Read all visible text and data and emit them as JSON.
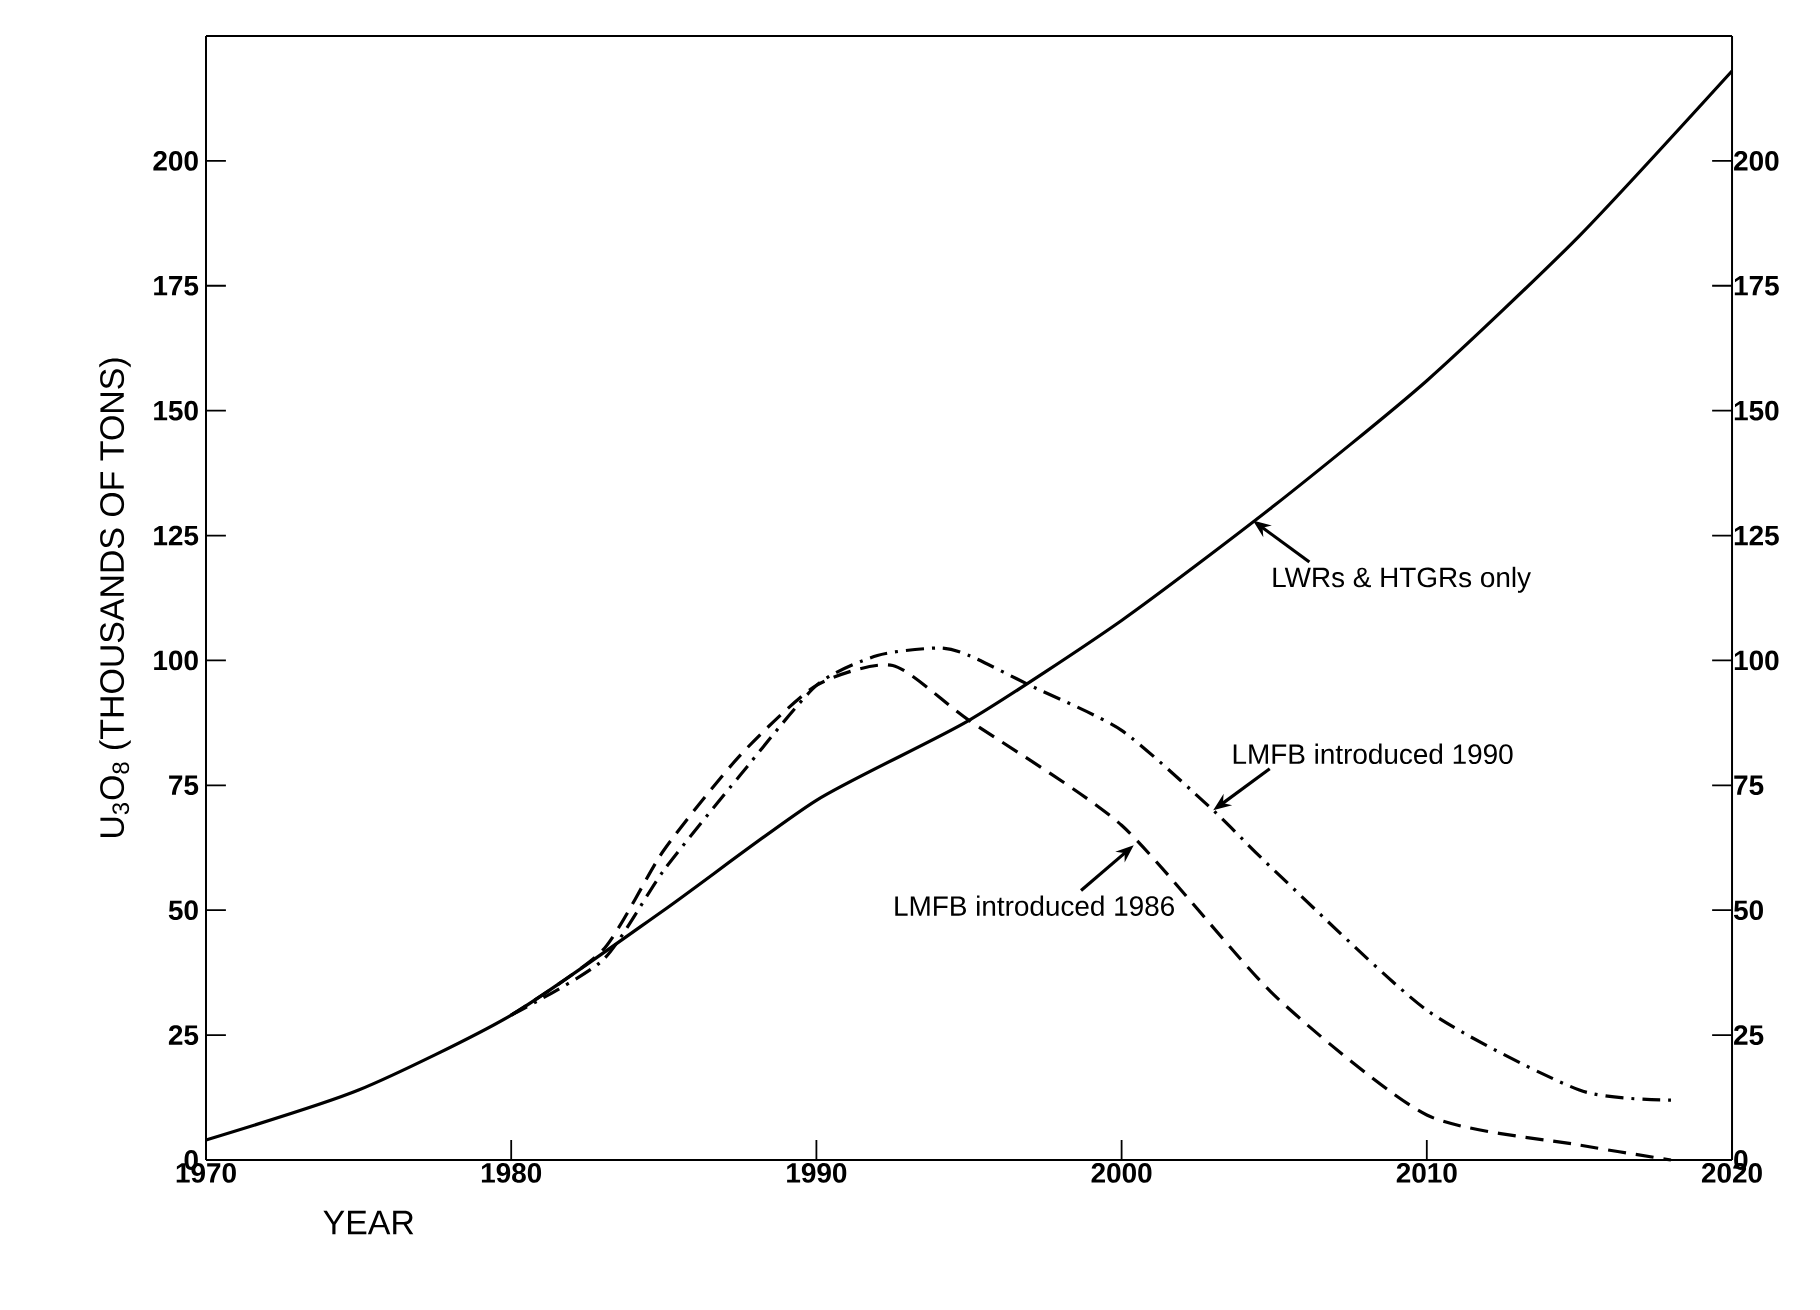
{
  "chart_data": {
    "type": "line",
    "xlabel": "YEAR",
    "ylabel": "U$_{3}$O$_{8}$ (THOUSANDS OF TONS)",
    "xlim": [
      1970,
      2020
    ],
    "xticks": [
      1970,
      1980,
      1990,
      2000,
      2010,
      2020
    ],
    "ylim": [
      0,
      225
    ],
    "yticks": [
      0,
      25,
      50,
      75,
      100,
      125,
      150,
      175,
      200
    ],
    "y2lim": [
      0,
      225
    ],
    "y2ticks": [
      0,
      25,
      50,
      75,
      100,
      125,
      150,
      175,
      200
    ],
    "marker": "none",
    "series": [
      {
        "color": "#000000",
        "line_style": "solid",
        "x": [
          1970,
          1975,
          1980,
          1985,
          1990,
          1995,
          2000,
          2005,
          2010,
          2015,
          2020
        ],
        "values": [
          4,
          14,
          29,
          50,
          72,
          88,
          108,
          131,
          156,
          185,
          218
        ]
      },
      {
        "color": "#000000",
        "line_style": "dashed",
        "x": [
          1980,
          1983,
          1985,
          1987.5,
          1990,
          1992.5,
          1995,
          2000,
          2005,
          2010,
          2015,
          2018
        ],
        "values": [
          29,
          42,
          62,
          81,
          95,
          99,
          88,
          67,
          33,
          9,
          3,
          0
        ]
      },
      {
        "color": "#000000",
        "line_style": "dashdot",
        "x": [
          1980,
          1983,
          1985,
          1987.5,
          1990,
          1992,
          1994,
          1995,
          1997,
          2000,
          2003,
          2005,
          2010,
          2015,
          2018
        ],
        "values": [
          29,
          40,
          58,
          77,
          95,
          101,
          102.5,
          101,
          95,
          86,
          70,
          58,
          30,
          14,
          12
        ]
      }
    ],
    "annotations": [
      {
        "text": "LWRs & HTGRs only",
        "x": 2004.3,
        "y": 128
      },
      {
        "text": "LMFB introduced 1990",
        "x": 2003,
        "y": 70
      },
      {
        "text": "LMFB introduced 1986",
        "x": 2000.4,
        "y": 63
      }
    ]
  }
}
